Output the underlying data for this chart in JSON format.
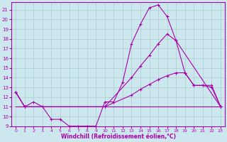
{
  "xlabel": "Windchill (Refroidissement éolien,°C)",
  "bg_color": "#cce8ee",
  "grid_color": "#aacccc",
  "line_color": "#aa00aa",
  "xlim": [
    -0.5,
    23.5
  ],
  "ylim": [
    9,
    21.8
  ],
  "xticks": [
    0,
    1,
    2,
    3,
    4,
    5,
    6,
    7,
    8,
    9,
    10,
    11,
    12,
    13,
    14,
    15,
    16,
    17,
    18,
    19,
    20,
    21,
    22,
    23
  ],
  "yticks": [
    9,
    10,
    11,
    12,
    13,
    14,
    15,
    16,
    17,
    18,
    19,
    20,
    21
  ],
  "curve1_x": [
    0,
    1,
    2,
    3,
    4,
    5,
    6,
    7,
    8,
    9,
    10,
    11,
    12,
    13,
    14,
    15,
    16,
    17,
    18,
    23
  ],
  "curve1_y": [
    12.5,
    11.0,
    11.5,
    11.0,
    9.7,
    9.7,
    9.0,
    9.0,
    9.0,
    9.0,
    11.5,
    11.5,
    13.5,
    17.5,
    19.5,
    21.2,
    21.5,
    20.3,
    17.8,
    11.0
  ],
  "curve2_x": [
    0,
    1,
    10,
    13,
    14,
    15,
    16,
    17,
    18,
    19,
    20,
    21,
    22,
    23
  ],
  "curve2_y": [
    12.5,
    11.0,
    11.0,
    14.0,
    15.2,
    16.3,
    17.5,
    18.5,
    17.8,
    14.5,
    13.2,
    13.2,
    13.2,
    11.0
  ],
  "curve3_x": [
    0,
    1,
    10,
    13,
    14,
    15,
    16,
    17,
    18,
    19,
    20,
    21,
    22,
    23
  ],
  "curve3_y": [
    12.5,
    11.0,
    11.0,
    12.2,
    12.8,
    13.3,
    13.8,
    14.2,
    14.5,
    14.5,
    13.2,
    13.2,
    13.0,
    11.0
  ],
  "hline_y": 11.0,
  "hline_x": [
    0,
    23
  ]
}
